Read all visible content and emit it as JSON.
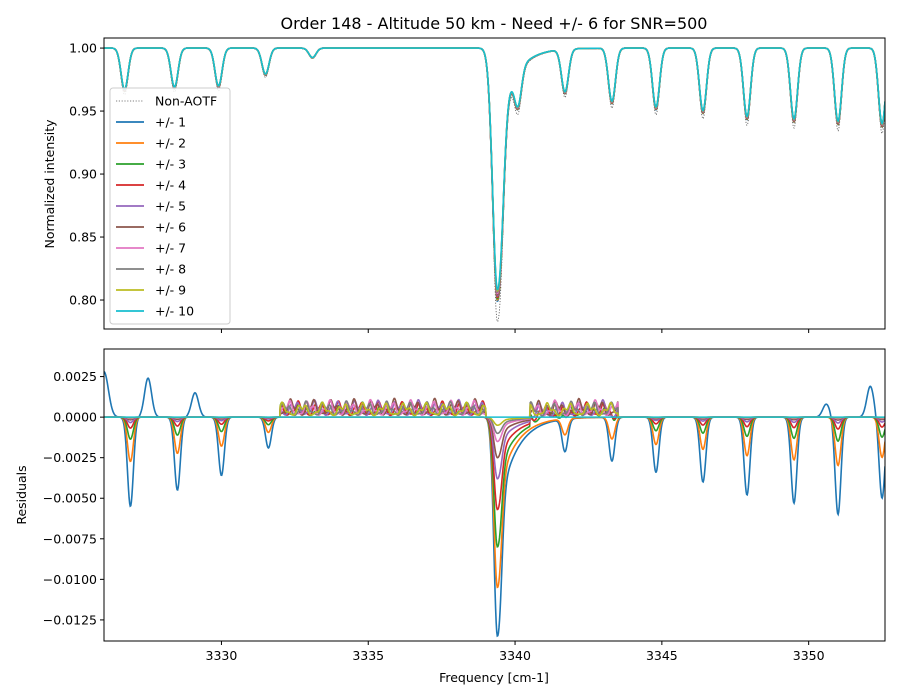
{
  "chart_data": [
    {
      "type": "line",
      "panel": "top",
      "title": "Order 148 - Altitude 50 km - Need +/- 6 for SNR=500",
      "xlabel": "",
      "ylabel": "Normalized intensity",
      "xlim": [
        3326.0,
        3352.6
      ],
      "ylim": [
        0.777,
        1.008
      ],
      "xticks": [
        3330,
        3335,
        3340,
        3345,
        3350
      ],
      "yticks": [
        0.8,
        0.85,
        0.9,
        0.95,
        1.0
      ],
      "ytick_labels": [
        "0.80",
        "0.85",
        "0.90",
        "0.95",
        "1.00"
      ],
      "legend": {
        "placement": "left",
        "entries": [
          "Non-AOTF",
          "+/- 1",
          "+/- 2",
          "+/- 3",
          "+/- 4",
          "+/- 5",
          "+/- 6",
          "+/- 7",
          "+/- 8",
          "+/- 9",
          "+/- 10"
        ]
      },
      "colors": {
        "Non-AOTF": "#555555",
        "+/- 1": "#1f77b4",
        "+/- 2": "#ff7f0e",
        "+/- 3": "#2ca02c",
        "+/- 4": "#d62728",
        "+/- 5": "#9467bd",
        "+/- 6": "#8c564b",
        "+/- 7": "#e377c2",
        "+/- 8": "#7f7f7f",
        "+/- 9": "#bcbd22",
        "+/- 10": "#17becf"
      },
      "lines": [
        {
          "center": 3326.7,
          "width": 0.12,
          "depth": 0.035
        },
        {
          "center": 3328.4,
          "width": 0.12,
          "depth": 0.033
        },
        {
          "center": 3329.9,
          "width": 0.12,
          "depth": 0.032
        },
        {
          "center": 3331.5,
          "width": 0.12,
          "depth": 0.022
        },
        {
          "center": 3333.1,
          "width": 0.12,
          "depth": 0.008
        },
        {
          "center": 3339.4,
          "width": 0.16,
          "depth": 0.205
        },
        {
          "center": 3340.1,
          "width": 0.12,
          "depth": 0.03
        },
        {
          "center": 3341.7,
          "width": 0.12,
          "depth": 0.036
        },
        {
          "center": 3343.3,
          "width": 0.12,
          "depth": 0.045
        },
        {
          "center": 3344.8,
          "width": 0.12,
          "depth": 0.05
        },
        {
          "center": 3346.4,
          "width": 0.12,
          "depth": 0.053
        },
        {
          "center": 3347.9,
          "width": 0.12,
          "depth": 0.058
        },
        {
          "center": 3349.5,
          "width": 0.12,
          "depth": 0.06
        },
        {
          "center": 3351.0,
          "width": 0.12,
          "depth": 0.062
        },
        {
          "center": 3352.5,
          "width": 0.12,
          "depth": 0.064
        }
      ]
    },
    {
      "type": "line",
      "panel": "bottom",
      "title": "",
      "xlabel": "Frequency [cm-1]",
      "ylabel": "Residuals",
      "xlim": [
        3326.0,
        3352.6
      ],
      "ylim": [
        -0.0138,
        0.0042
      ],
      "xticks": [
        3330,
        3335,
        3340,
        3345,
        3350
      ],
      "yticks": [
        0.0025,
        0.0,
        -0.0025,
        -0.005,
        -0.0075,
        -0.01,
        -0.0125
      ],
      "ytick_labels": [
        "0.0025",
        "0.0000",
        "−0.0025",
        "−0.0050",
        "−0.0075",
        "−0.0100",
        "−0.0125"
      ],
      "series_names": [
        "+/- 1",
        "+/- 2",
        "+/- 3",
        "+/- 4",
        "+/- 5",
        "+/- 6",
        "+/- 7",
        "+/- 8",
        "+/- 9",
        "+/- 10"
      ],
      "main_dip": {
        "center": 3339.4,
        "min_values": [
          -0.0135,
          -0.0105,
          -0.008,
          -0.0057,
          -0.0038,
          -0.0025,
          -0.0015,
          -0.001,
          -0.0005,
          0.0
        ]
      },
      "small_dips": [
        {
          "center": 3326.9,
          "min_plus1": -0.0055
        },
        {
          "center": 3328.5,
          "min_plus1": -0.0045
        },
        {
          "center": 3330.0,
          "min_plus1": -0.0036
        },
        {
          "center": 3331.6,
          "min_plus1": -0.0019
        },
        {
          "center": 3341.7,
          "min_plus1": -0.002
        },
        {
          "center": 3343.3,
          "min_plus1": -0.0027
        },
        {
          "center": 3344.8,
          "min_plus1": -0.0034
        },
        {
          "center": 3346.4,
          "min_plus1": -0.004
        },
        {
          "center": 3347.9,
          "min_plus1": -0.0048
        },
        {
          "center": 3349.5,
          "min_plus1": -0.0053
        },
        {
          "center": 3351.0,
          "min_plus1": -0.006
        },
        {
          "center": 3352.5,
          "min_plus1": -0.005
        }
      ],
      "peaks_plus1": [
        {
          "x": 3327.5,
          "y": 0.0024
        },
        {
          "x": 3329.1,
          "y": 0.0015
        },
        {
          "x": 3350.6,
          "y": 0.0008
        },
        {
          "x": 3352.1,
          "y": 0.0019
        }
      ]
    }
  ]
}
